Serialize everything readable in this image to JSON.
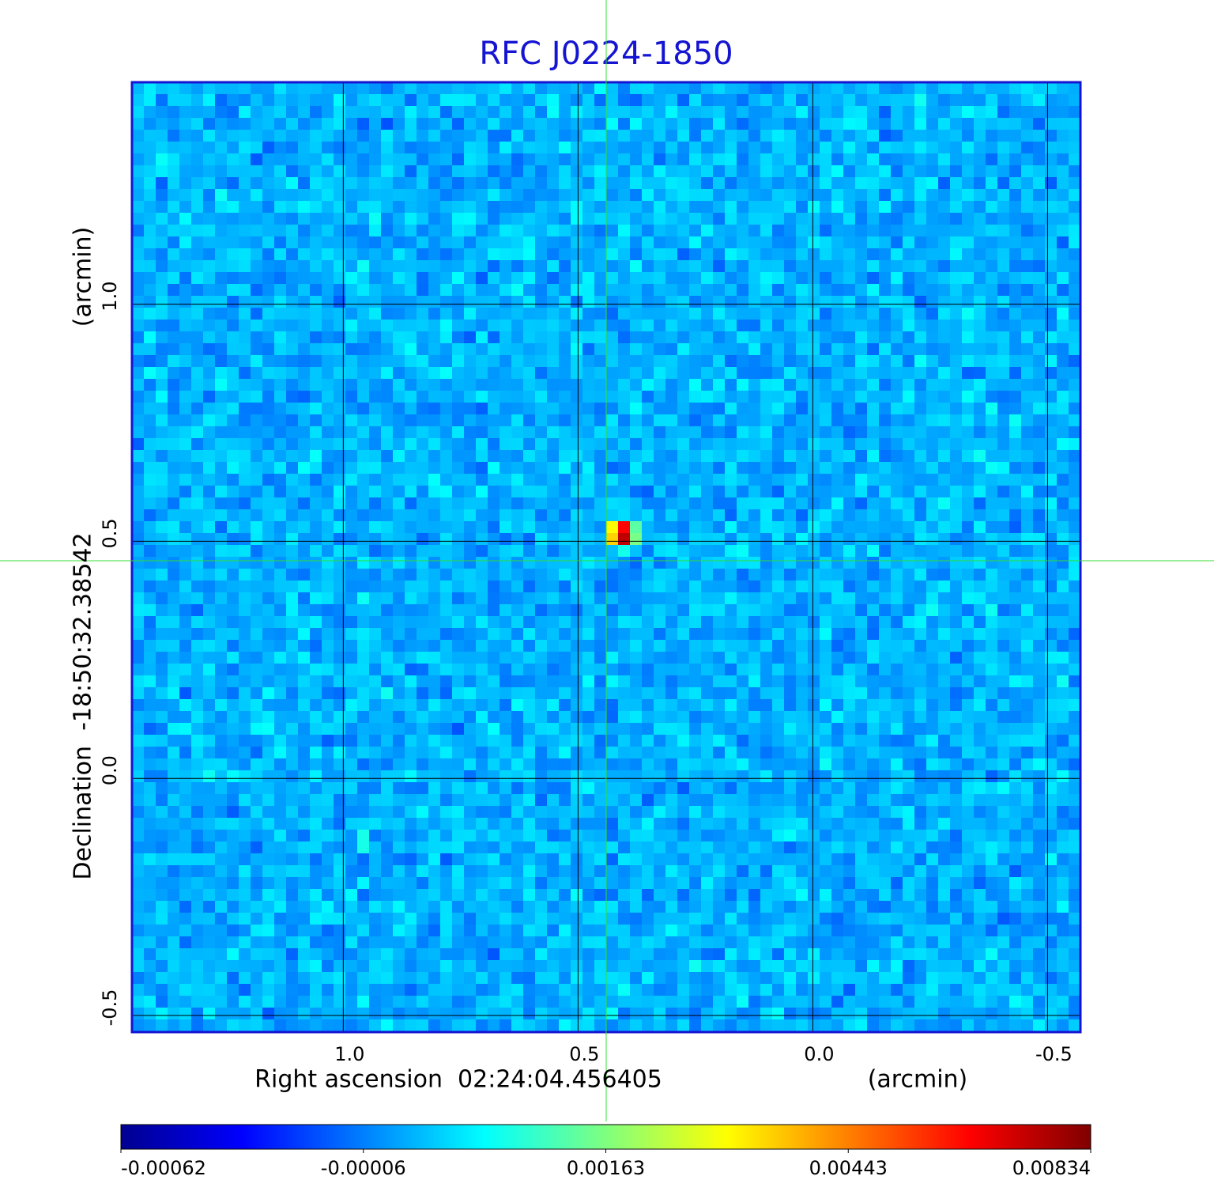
{
  "chart_data": {
    "type": "image",
    "title": "RFC J0224-1850",
    "x_label": "Right ascension  02:24:04.456405",
    "x_unit": "(arcmin)",
    "y_label": "Declination  -18:50:32.38542",
    "y_unit": "(arcmin)",
    "xlim": [
      1.45,
      -0.57
    ],
    "ylim": [
      -0.535,
      1.468
    ],
    "xticks": [
      {
        "value": 1,
        "label": "1.0"
      },
      {
        "value": 0.5,
        "label": "0.5"
      },
      {
        "value": 0,
        "label": "0.0"
      },
      {
        "value": -0.5,
        "label": "-0.5"
      }
    ],
    "yticks": [
      {
        "value": -0.5,
        "label": "-0.5"
      },
      {
        "value": 0,
        "label": "0.0"
      },
      {
        "value": 0.5,
        "label": "0.5"
      },
      {
        "value": 1,
        "label": "1.0"
      }
    ],
    "grid": true,
    "colorbar": {
      "ticks": [
        -0.00062,
        -6e-05,
        0.00163,
        0.00443,
        0.00834
      ],
      "colors": [
        "#00008f",
        "#0000ff",
        "#00ffff",
        "#ffff00",
        "#ff0000",
        "#800000"
      ]
    }
  }
}
